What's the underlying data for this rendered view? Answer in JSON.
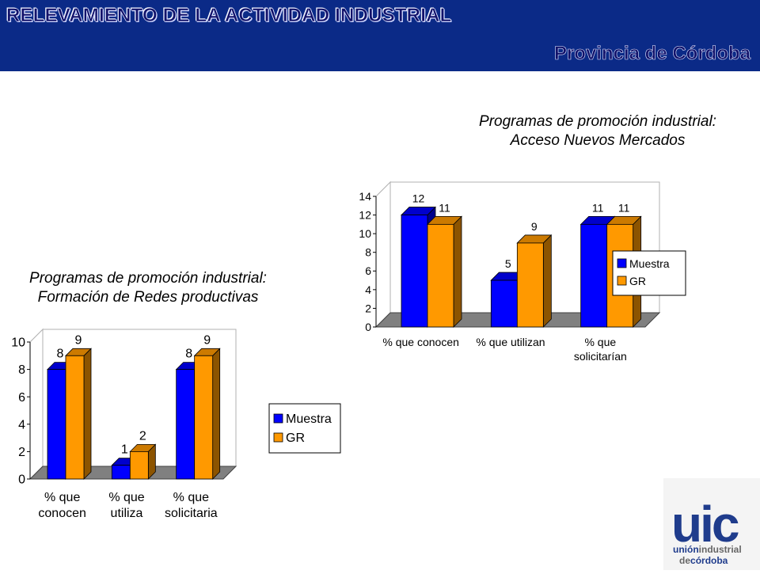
{
  "header": {
    "title": "RELEVAMIENTO DE LA ACTIVIDAD INDUSTRIAL",
    "subtitle": "Provincia de Córdoba"
  },
  "colors": {
    "banner": "#0b2a87",
    "muestra": "#0000ff",
    "gr": "#ff9900",
    "floor": "#808080"
  },
  "chart_data": [
    {
      "type": "bar",
      "title_line1": "Programas de promoción industrial:",
      "title_line2": "Acceso Nuevos Mercados",
      "categories": [
        [
          "% que conocen"
        ],
        [
          "% que utilizan"
        ],
        [
          "% que",
          "solicitarían"
        ]
      ],
      "series": [
        {
          "name": "Muestra",
          "values": [
            12,
            5,
            11
          ]
        },
        {
          "name": "GR",
          "values": [
            11,
            9,
            11
          ]
        }
      ],
      "ylim": [
        0,
        14
      ],
      "yticks": [
        0,
        2,
        4,
        6,
        8,
        10,
        12,
        14
      ],
      "legend": "right"
    },
    {
      "type": "bar",
      "title_line1": "Programas de promoción industrial:",
      "title_line2": "Formación de Redes productivas",
      "categories": [
        [
          "% que",
          "conocen"
        ],
        [
          "% que",
          "utiliza"
        ],
        [
          "% que",
          "solicitaria"
        ]
      ],
      "series": [
        {
          "name": "Muestra",
          "values": [
            8,
            1,
            8
          ]
        },
        {
          "name": "GR",
          "values": [
            9,
            2,
            9
          ]
        }
      ],
      "ylim": [
        0,
        10
      ],
      "yticks": [
        0,
        2,
        4,
        6,
        8,
        10
      ],
      "legend": "right"
    }
  ],
  "logo": {
    "mark": "uic",
    "line1_a": "unión",
    "line1_b": "industrial",
    "line2_a": "de",
    "line2_b": "córdoba"
  }
}
